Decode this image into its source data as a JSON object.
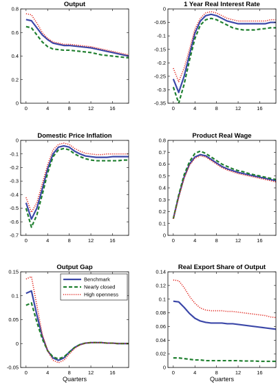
{
  "series_style": [
    {
      "name": "Benchmark",
      "color": "#3b47a8",
      "dash": "solid"
    },
    {
      "name": "Nearly closed",
      "color": "#1f7f2f",
      "dash": "dashed"
    },
    {
      "name": "High openness",
      "color": "#e0241c",
      "dash": "dotted"
    }
  ],
  "chart_data": [
    {
      "type": "line",
      "title": "Output",
      "xlabel": "",
      "xlim": [
        -1,
        19
      ],
      "xticks": [
        0,
        4,
        8,
        12,
        16
      ],
      "ylim": [
        0,
        0.8
      ],
      "yticks": [
        "0",
        "0.2",
        "0.4",
        "0.6",
        "0.8"
      ],
      "ytick_values": [
        0,
        0.2,
        0.4,
        0.6,
        0.8
      ],
      "x": [
        0,
        1,
        2,
        3,
        4,
        5,
        6,
        7,
        8,
        9,
        10,
        11,
        12,
        13,
        14,
        15,
        16,
        17,
        18,
        19
      ],
      "series": [
        {
          "name": "Benchmark",
          "values": [
            0.71,
            0.7,
            0.64,
            0.58,
            0.54,
            0.51,
            0.5,
            0.49,
            0.49,
            0.485,
            0.48,
            0.475,
            0.47,
            0.46,
            0.45,
            0.44,
            0.43,
            0.42,
            0.41,
            0.4
          ]
        },
        {
          "name": "Nearly closed",
          "values": [
            0.65,
            0.64,
            0.58,
            0.52,
            0.48,
            0.46,
            0.455,
            0.45,
            0.45,
            0.445,
            0.44,
            0.435,
            0.43,
            0.42,
            0.41,
            0.405,
            0.4,
            0.395,
            0.39,
            0.385
          ]
        },
        {
          "name": "High openness",
          "values": [
            0.76,
            0.75,
            0.68,
            0.6,
            0.55,
            0.52,
            0.51,
            0.5,
            0.5,
            0.495,
            0.49,
            0.485,
            0.48,
            0.47,
            0.46,
            0.45,
            0.44,
            0.43,
            0.42,
            0.41
          ]
        }
      ]
    },
    {
      "type": "line",
      "title": "1 Year Real Interest Rate",
      "xlabel": "",
      "xlim": [
        -1,
        19
      ],
      "xticks": [
        0,
        4,
        8,
        12,
        16
      ],
      "ylim": [
        -0.35,
        0
      ],
      "yticks": [
        "-0.35",
        "-0.3",
        "-0.25",
        "-0.2",
        "-0.15",
        "-0.1",
        "-0.05",
        "0"
      ],
      "ytick_values": [
        -0.35,
        -0.3,
        -0.25,
        -0.2,
        -0.15,
        -0.1,
        -0.05,
        0
      ],
      "x": [
        0,
        1,
        2,
        3,
        4,
        5,
        6,
        7,
        8,
        9,
        10,
        11,
        12,
        13,
        14,
        15,
        16,
        17,
        18,
        19
      ],
      "series": [
        {
          "name": "Benchmark",
          "values": [
            -0.26,
            -0.31,
            -0.25,
            -0.17,
            -0.09,
            -0.045,
            -0.025,
            -0.02,
            -0.025,
            -0.035,
            -0.045,
            -0.05,
            -0.055,
            -0.055,
            -0.055,
            -0.055,
            -0.055,
            -0.055,
            -0.05,
            -0.05
          ]
        },
        {
          "name": "Nearly closed",
          "values": [
            -0.29,
            -0.35,
            -0.28,
            -0.19,
            -0.11,
            -0.06,
            -0.04,
            -0.035,
            -0.04,
            -0.05,
            -0.06,
            -0.07,
            -0.075,
            -0.078,
            -0.078,
            -0.078,
            -0.075,
            -0.073,
            -0.07,
            -0.07
          ]
        },
        {
          "name": "High openness",
          "values": [
            -0.22,
            -0.27,
            -0.22,
            -0.15,
            -0.075,
            -0.035,
            -0.015,
            -0.01,
            -0.015,
            -0.025,
            -0.035,
            -0.04,
            -0.045,
            -0.045,
            -0.045,
            -0.045,
            -0.045,
            -0.045,
            -0.04,
            -0.04
          ]
        }
      ]
    },
    {
      "type": "line",
      "title": "Domestic Price Inflation",
      "xlabel": "",
      "xlim": [
        -1,
        19
      ],
      "xticks": [
        0,
        4,
        8,
        12,
        16
      ],
      "ylim": [
        -0.7,
        0
      ],
      "yticks": [
        "-0.7",
        "-0.6",
        "-0.5",
        "-0.4",
        "-0.3",
        "-0.2",
        "-0.1",
        "0"
      ],
      "ytick_values": [
        -0.7,
        -0.6,
        -0.5,
        -0.4,
        -0.3,
        -0.2,
        -0.1,
        0
      ],
      "x": [
        0,
        1,
        2,
        3,
        4,
        5,
        6,
        7,
        8,
        9,
        10,
        11,
        12,
        13,
        14,
        15,
        16,
        17,
        18,
        19
      ],
      "series": [
        {
          "name": "Benchmark",
          "values": [
            -0.46,
            -0.58,
            -0.5,
            -0.36,
            -0.21,
            -0.1,
            -0.05,
            -0.04,
            -0.05,
            -0.08,
            -0.1,
            -0.115,
            -0.12,
            -0.125,
            -0.125,
            -0.125,
            -0.12,
            -0.12,
            -0.12,
            -0.12
          ]
        },
        {
          "name": "Nearly closed",
          "values": [
            -0.5,
            -0.64,
            -0.55,
            -0.4,
            -0.24,
            -0.12,
            -0.07,
            -0.06,
            -0.07,
            -0.1,
            -0.12,
            -0.135,
            -0.145,
            -0.15,
            -0.15,
            -0.15,
            -0.15,
            -0.15,
            -0.145,
            -0.145
          ]
        },
        {
          "name": "High openness",
          "values": [
            -0.42,
            -0.53,
            -0.46,
            -0.32,
            -0.18,
            -0.07,
            -0.03,
            -0.02,
            -0.03,
            -0.06,
            -0.08,
            -0.095,
            -0.1,
            -0.105,
            -0.105,
            -0.1,
            -0.1,
            -0.1,
            -0.1,
            -0.1
          ]
        }
      ]
    },
    {
      "type": "line",
      "title": "Product Real Wage",
      "xlabel": "",
      "xlim": [
        -1,
        19
      ],
      "xticks": [
        0,
        4,
        8,
        12,
        16
      ],
      "ylim": [
        0,
        0.8
      ],
      "yticks": [
        "0",
        "0.1",
        "0.2",
        "0.3",
        "0.4",
        "0.5",
        "0.6",
        "0.7",
        "0.8"
      ],
      "ytick_values": [
        0,
        0.1,
        0.2,
        0.3,
        0.4,
        0.5,
        0.6,
        0.7,
        0.8
      ],
      "x": [
        0,
        1,
        2,
        3,
        4,
        5,
        6,
        7,
        8,
        9,
        10,
        11,
        12,
        13,
        14,
        15,
        16,
        17,
        18,
        19
      ],
      "series": [
        {
          "name": "Benchmark",
          "values": [
            0.14,
            0.33,
            0.49,
            0.6,
            0.66,
            0.68,
            0.67,
            0.64,
            0.61,
            0.58,
            0.56,
            0.545,
            0.53,
            0.52,
            0.51,
            0.5,
            0.49,
            0.48,
            0.47,
            0.46
          ]
        },
        {
          "name": "Nearly closed",
          "values": [
            0.14,
            0.34,
            0.51,
            0.62,
            0.69,
            0.71,
            0.69,
            0.66,
            0.63,
            0.6,
            0.58,
            0.56,
            0.545,
            0.535,
            0.52,
            0.51,
            0.5,
            0.49,
            0.48,
            0.47
          ]
        },
        {
          "name": "High openness",
          "values": [
            0.14,
            0.32,
            0.48,
            0.59,
            0.65,
            0.67,
            0.66,
            0.63,
            0.6,
            0.57,
            0.55,
            0.535,
            0.52,
            0.51,
            0.5,
            0.49,
            0.48,
            0.47,
            0.46,
            0.45
          ]
        }
      ]
    },
    {
      "type": "line",
      "title": "Output Gap",
      "xlabel": "Quarters",
      "xlim": [
        -1,
        19
      ],
      "xticks": [
        0,
        4,
        8,
        12,
        16
      ],
      "ylim": [
        -0.05,
        0.15
      ],
      "yticks": [
        "-0.05",
        "0",
        "0.05",
        "0.1",
        "0.15"
      ],
      "ytick_values": [
        -0.05,
        0,
        0.05,
        0.1,
        0.15
      ],
      "x": [
        0,
        1,
        2,
        3,
        4,
        5,
        6,
        7,
        8,
        9,
        10,
        11,
        12,
        13,
        14,
        15,
        16,
        17,
        18,
        19
      ],
      "series": [
        {
          "name": "Benchmark",
          "values": [
            0.105,
            0.11,
            0.06,
            0.015,
            -0.015,
            -0.03,
            -0.035,
            -0.03,
            -0.018,
            -0.008,
            -0.002,
            0.001,
            0.002,
            0.002,
            0.002,
            0.001,
            0.001,
            0,
            0,
            0
          ]
        },
        {
          "name": "Nearly closed",
          "values": [
            0.08,
            0.085,
            0.045,
            0.01,
            -0.015,
            -0.028,
            -0.032,
            -0.028,
            -0.018,
            -0.008,
            -0.002,
            0.001,
            0.002,
            0.002,
            0.002,
            0.001,
            0.001,
            0,
            0,
            0
          ]
        },
        {
          "name": "High openness",
          "values": [
            0.135,
            0.14,
            0.08,
            0.02,
            -0.015,
            -0.035,
            -0.04,
            -0.035,
            -0.022,
            -0.01,
            -0.003,
            0.001,
            0.002,
            0.002,
            0.002,
            0.001,
            0.001,
            0,
            0,
            0
          ]
        }
      ],
      "legend": {
        "placement": "top-right",
        "entries": [
          "Benchmark",
          "Nearly closed",
          "High openness"
        ]
      }
    },
    {
      "type": "line",
      "title": "Real Export Share of Output",
      "xlabel": "Quarters",
      "xlim": [
        -1,
        19
      ],
      "xticks": [
        0,
        4,
        8,
        12,
        16
      ],
      "ylim": [
        0,
        0.14
      ],
      "yticks": [
        "0",
        "0.02",
        "0.04",
        "0.06",
        "0.08",
        "0.1",
        "0.12",
        "0.14"
      ],
      "ytick_values": [
        0,
        0.02,
        0.04,
        0.06,
        0.08,
        0.1,
        0.12,
        0.14
      ],
      "x": [
        0,
        1,
        2,
        3,
        4,
        5,
        6,
        7,
        8,
        9,
        10,
        11,
        12,
        13,
        14,
        15,
        16,
        17,
        18,
        19
      ],
      "series": [
        {
          "name": "Benchmark",
          "values": [
            0.097,
            0.096,
            0.088,
            0.079,
            0.072,
            0.068,
            0.066,
            0.065,
            0.065,
            0.065,
            0.064,
            0.064,
            0.063,
            0.062,
            0.061,
            0.06,
            0.059,
            0.058,
            0.057,
            0.056
          ]
        },
        {
          "name": "Nearly closed",
          "values": [
            0.014,
            0.014,
            0.013,
            0.012,
            0.011,
            0.011,
            0.01,
            0.01,
            0.01,
            0.01,
            0.01,
            0.01,
            0.01,
            0.0095,
            0.0095,
            0.0095,
            0.009,
            0.009,
            0.009,
            0.009
          ]
        },
        {
          "name": "High openness",
          "values": [
            0.128,
            0.127,
            0.117,
            0.104,
            0.094,
            0.087,
            0.084,
            0.083,
            0.083,
            0.083,
            0.082,
            0.082,
            0.081,
            0.08,
            0.079,
            0.078,
            0.077,
            0.076,
            0.074,
            0.073
          ]
        }
      ]
    }
  ]
}
